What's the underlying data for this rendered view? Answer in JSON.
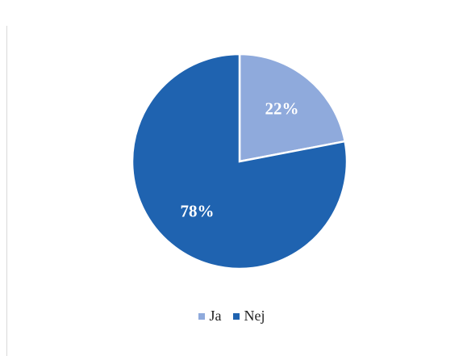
{
  "caption": "",
  "chart_data": {
    "type": "pie",
    "title": "",
    "categories": [
      "Ja",
      "Nej"
    ],
    "values": [
      22,
      78
    ],
    "labels": [
      "22%",
      "78%"
    ],
    "colors": [
      "#8faadc",
      "#1f63b0"
    ],
    "legend_position": "bottom",
    "start_angle_deg": 0,
    "direction": "clockwise"
  }
}
